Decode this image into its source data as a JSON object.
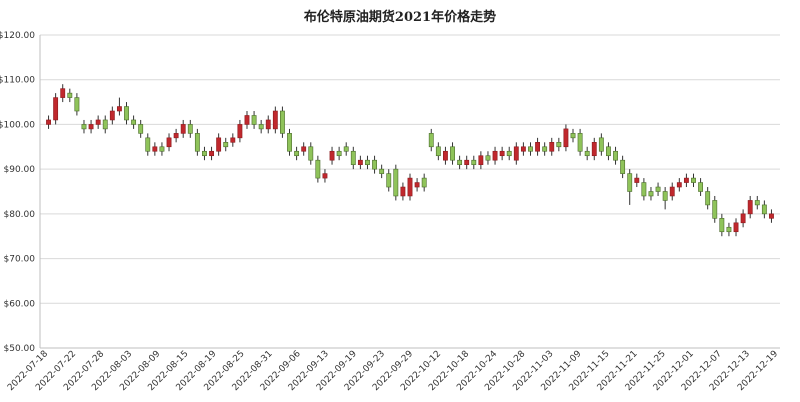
{
  "chart_data": {
    "type": "candlestick",
    "title": "布伦特原油期货2021年价格走势",
    "ylim": [
      50,
      120
    ],
    "y_ticks": [
      "$50.00",
      "$60.00",
      "$70.00",
      "$80.00",
      "$90.00",
      "$100.00",
      "$110.00",
      "$120.00"
    ],
    "y_tick_values": [
      50,
      60,
      70,
      80,
      90,
      100,
      110,
      120
    ],
    "grid": "horizontal",
    "colors": {
      "up": "#c0282d",
      "down": "#8fc35a",
      "down_border": "#4a6b2a",
      "up_border": "#8b1a1e",
      "wick": "#333333"
    },
    "x_tick_labels": [
      "2022-07-18",
      "2022-07-22",
      "2022-07-28",
      "2022-08-03",
      "2022-08-09",
      "2022-08-15",
      "2022-08-19",
      "2022-08-25",
      "2022-08-31",
      "2022-09-06",
      "2022-09-13",
      "2022-09-19",
      "2022-09-23",
      "2022-09-29",
      "2022-10-12",
      "2022-10-18",
      "2022-10-24",
      "2022-10-28",
      "2022-11-03",
      "2022-11-09",
      "2022-11-15",
      "2022-11-21",
      "2022-11-25",
      "2022-12-01",
      "2022-12-07",
      "2022-12-13",
      "2022-12-19"
    ],
    "candles": [
      {
        "o": 100,
        "c": 101,
        "h": 102,
        "l": 99
      },
      {
        "o": 101,
        "c": 106,
        "h": 107,
        "l": 100
      },
      {
        "o": 106,
        "c": 108,
        "h": 109,
        "l": 105
      },
      {
        "o": 107,
        "c": 106,
        "h": 108,
        "l": 105
      },
      {
        "o": 106,
        "c": 103,
        "h": 107,
        "l": 102
      },
      {
        "o": 100,
        "c": 99,
        "h": 101,
        "l": 98
      },
      {
        "o": 99,
        "c": 100,
        "h": 101,
        "l": 98
      },
      {
        "o": 100,
        "c": 101,
        "h": 102,
        "l": 99
      },
      {
        "o": 101,
        "c": 99,
        "h": 102,
        "l": 98
      },
      {
        "o": 101,
        "c": 103,
        "h": 104,
        "l": 100
      },
      {
        "o": 103,
        "c": 104,
        "h": 106,
        "l": 102
      },
      {
        "o": 104,
        "c": 101,
        "h": 105,
        "l": 100
      },
      {
        "o": 101,
        "c": 100,
        "h": 102,
        "l": 99
      },
      {
        "o": 100,
        "c": 98,
        "h": 101,
        "l": 97
      },
      {
        "o": 97,
        "c": 94,
        "h": 98,
        "l": 93
      },
      {
        "o": 94,
        "c": 95,
        "h": 96,
        "l": 93
      },
      {
        "o": 95,
        "c": 94,
        "h": 96,
        "l": 93
      },
      {
        "o": 95,
        "c": 97,
        "h": 98,
        "l": 94
      },
      {
        "o": 97,
        "c": 98,
        "h": 99,
        "l": 96
      },
      {
        "o": 98,
        "c": 100,
        "h": 101,
        "l": 97
      },
      {
        "o": 100,
        "c": 98,
        "h": 101,
        "l": 97
      },
      {
        "o": 98,
        "c": 94,
        "h": 99,
        "l": 93
      },
      {
        "o": 94,
        "c": 93,
        "h": 95,
        "l": 92
      },
      {
        "o": 93,
        "c": 94,
        "h": 95,
        "l": 92
      },
      {
        "o": 94,
        "c": 97,
        "h": 98,
        "l": 93
      },
      {
        "o": 96,
        "c": 95,
        "h": 97,
        "l": 94
      },
      {
        "o": 96,
        "c": 97,
        "h": 98,
        "l": 95
      },
      {
        "o": 97,
        "c": 100,
        "h": 101,
        "l": 96
      },
      {
        "o": 100,
        "c": 102,
        "h": 103,
        "l": 99
      },
      {
        "o": 102,
        "c": 100,
        "h": 103,
        "l": 99
      },
      {
        "o": 100,
        "c": 99,
        "h": 101,
        "l": 98
      },
      {
        "o": 99,
        "c": 101,
        "h": 102,
        "l": 98
      },
      {
        "o": 99,
        "c": 103,
        "h": 104,
        "l": 98
      },
      {
        "o": 103,
        "c": 98,
        "h": 104,
        "l": 97
      },
      {
        "o": 98,
        "c": 94,
        "h": 99,
        "l": 93
      },
      {
        "o": 94,
        "c": 93,
        "h": 95,
        "l": 92
      },
      {
        "o": 94,
        "c": 95,
        "h": 96,
        "l": 93
      },
      {
        "o": 95,
        "c": 92,
        "h": 96,
        "l": 91
      },
      {
        "o": 92,
        "c": 88,
        "h": 93,
        "l": 87
      },
      {
        "o": 88,
        "c": 89,
        "h": 90,
        "l": 87
      },
      {
        "o": 92,
        "c": 94,
        "h": 95,
        "l": 91
      },
      {
        "o": 94,
        "c": 93,
        "h": 95,
        "l": 92
      },
      {
        "o": 95,
        "c": 94,
        "h": 96,
        "l": 93
      },
      {
        "o": 94,
        "c": 91,
        "h": 95,
        "l": 90
      },
      {
        "o": 91,
        "c": 92,
        "h": 93,
        "l": 90
      },
      {
        "o": 92,
        "c": 91,
        "h": 93,
        "l": 90
      },
      {
        "o": 92,
        "c": 90,
        "h": 93,
        "l": 89
      },
      {
        "o": 90,
        "c": 89,
        "h": 91,
        "l": 88
      },
      {
        "o": 89,
        "c": 86,
        "h": 90,
        "l": 85
      },
      {
        "o": 90,
        "c": 84,
        "h": 91,
        "l": 83
      },
      {
        "o": 84,
        "c": 86,
        "h": 87,
        "l": 83
      },
      {
        "o": 84,
        "c": 88,
        "h": 89,
        "l": 83
      },
      {
        "o": 86,
        "c": 87,
        "h": 88,
        "l": 85
      },
      {
        "o": 88,
        "c": 86,
        "h": 89,
        "l": 85
      },
      {
        "o": 98,
        "c": 95,
        "h": 99,
        "l": 94
      },
      {
        "o": 95,
        "c": 93,
        "h": 96,
        "l": 92
      },
      {
        "o": 92,
        "c": 94,
        "h": 95,
        "l": 91
      },
      {
        "o": 95,
        "c": 92,
        "h": 96,
        "l": 91
      },
      {
        "o": 92,
        "c": 91,
        "h": 93,
        "l": 90
      },
      {
        "o": 91,
        "c": 92,
        "h": 93,
        "l": 90
      },
      {
        "o": 92,
        "c": 91,
        "h": 93,
        "l": 90
      },
      {
        "o": 91,
        "c": 93,
        "h": 94,
        "l": 90
      },
      {
        "o": 93,
        "c": 92,
        "h": 94,
        "l": 91
      },
      {
        "o": 92,
        "c": 94,
        "h": 95,
        "l": 91
      },
      {
        "o": 93,
        "c": 94,
        "h": 95,
        "l": 92
      },
      {
        "o": 94,
        "c": 93,
        "h": 95,
        "l": 92
      },
      {
        "o": 92,
        "c": 95,
        "h": 96,
        "l": 91
      },
      {
        "o": 94,
        "c": 95,
        "h": 96,
        "l": 93
      },
      {
        "o": 95,
        "c": 94,
        "h": 96,
        "l": 93
      },
      {
        "o": 94,
        "c": 96,
        "h": 97,
        "l": 93
      },
      {
        "o": 95,
        "c": 94,
        "h": 96,
        "l": 93
      },
      {
        "o": 94,
        "c": 96,
        "h": 97,
        "l": 93
      },
      {
        "o": 96,
        "c": 95,
        "h": 97,
        "l": 94
      },
      {
        "o": 95,
        "c": 99,
        "h": 100,
        "l": 94
      },
      {
        "o": 98,
        "c": 97,
        "h": 99,
        "l": 96
      },
      {
        "o": 98,
        "c": 94,
        "h": 99,
        "l": 93
      },
      {
        "o": 94,
        "c": 93,
        "h": 95,
        "l": 92
      },
      {
        "o": 93,
        "c": 96,
        "h": 97,
        "l": 92
      },
      {
        "o": 97,
        "c": 94,
        "h": 98,
        "l": 93
      },
      {
        "o": 95,
        "c": 93,
        "h": 96,
        "l": 92
      },
      {
        "o": 94,
        "c": 92,
        "h": 95,
        "l": 91
      },
      {
        "o": 92,
        "c": 89,
        "h": 93,
        "l": 88
      },
      {
        "o": 89,
        "c": 85,
        "h": 90,
        "l": 82
      },
      {
        "o": 87,
        "c": 88,
        "h": 89,
        "l": 86
      },
      {
        "o": 87,
        "c": 84,
        "h": 88,
        "l": 83
      },
      {
        "o": 85,
        "c": 84,
        "h": 86,
        "l": 83
      },
      {
        "o": 86,
        "c": 85,
        "h": 87,
        "l": 84
      },
      {
        "o": 85,
        "c": 83,
        "h": 86,
        "l": 81
      },
      {
        "o": 84,
        "c": 86,
        "h": 87,
        "l": 83
      },
      {
        "o": 86,
        "c": 87,
        "h": 88,
        "l": 85
      },
      {
        "o": 87,
        "c": 88,
        "h": 89,
        "l": 86
      },
      {
        "o": 88,
        "c": 87,
        "h": 89,
        "l": 86
      },
      {
        "o": 87,
        "c": 85,
        "h": 88,
        "l": 84
      },
      {
        "o": 85,
        "c": 82,
        "h": 86,
        "l": 81
      },
      {
        "o": 83,
        "c": 79,
        "h": 84,
        "l": 78
      },
      {
        "o": 79,
        "c": 76,
        "h": 80,
        "l": 75
      },
      {
        "o": 77,
        "c": 76,
        "h": 78,
        "l": 75
      },
      {
        "o": 76,
        "c": 78,
        "h": 79,
        "l": 75
      },
      {
        "o": 78,
        "c": 80,
        "h": 81,
        "l": 77
      },
      {
        "o": 80,
        "c": 83,
        "h": 84,
        "l": 79
      },
      {
        "o": 83,
        "c": 82,
        "h": 84,
        "l": 81
      },
      {
        "o": 82,
        "c": 80,
        "h": 83,
        "l": 79
      },
      {
        "o": 79,
        "c": 80,
        "h": 81,
        "l": 78
      }
    ]
  }
}
